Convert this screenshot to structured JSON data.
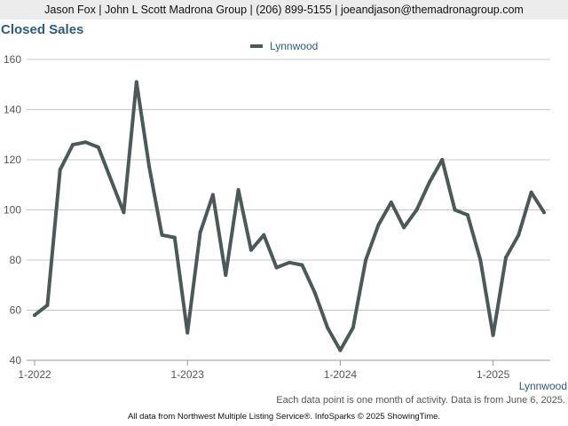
{
  "header": {
    "contact_line": "Jason Fox | John L Scott Madrona Group | (206) 899-5155 | joeandjason@themadronagroup.com"
  },
  "chart_data": {
    "type": "line",
    "title": "Closed Sales",
    "xlabel": "",
    "ylabel": "",
    "x": [
      "2022-01",
      "2022-02",
      "2022-03",
      "2022-04",
      "2022-05",
      "2022-06",
      "2022-07",
      "2022-08",
      "2022-09",
      "2022-10",
      "2022-11",
      "2022-12",
      "2023-01",
      "2023-02",
      "2023-03",
      "2023-04",
      "2023-05",
      "2023-06",
      "2023-07",
      "2023-08",
      "2023-09",
      "2023-10",
      "2023-11",
      "2023-12",
      "2024-01",
      "2024-02",
      "2024-03",
      "2024-04",
      "2024-05",
      "2024-06",
      "2024-07",
      "2024-08",
      "2024-09",
      "2024-10",
      "2024-11",
      "2024-12",
      "2025-01",
      "2025-02",
      "2025-03",
      "2025-04",
      "2025-05"
    ],
    "series": [
      {
        "name": "Lynnwood",
        "color": "#4d5959",
        "values": [
          58,
          62,
          116,
          126,
          127,
          125,
          112,
          99,
          151,
          117,
          90,
          89,
          51,
          91,
          106,
          74,
          108,
          84,
          90,
          77,
          79,
          78,
          67,
          53,
          44,
          53,
          80,
          94,
          103,
          93,
          100,
          111,
          120,
          100,
          98,
          80,
          50,
          81,
          90,
          107,
          99
        ]
      }
    ],
    "ylim": [
      40,
      160
    ],
    "y_ticks": [
      40,
      60,
      80,
      100,
      120,
      140,
      160
    ],
    "x_ticks": [
      {
        "label": "1-2022",
        "index": 0
      },
      {
        "label": "1-2023",
        "index": 12
      },
      {
        "label": "1-2024",
        "index": 24
      },
      {
        "label": "1-2025",
        "index": 36
      }
    ],
    "grid": "horizontal",
    "legend_position": "top-center",
    "legend": [
      "Lynnwood"
    ]
  },
  "series_label": "Lynnwood",
  "footnote": "Each data point is one month of activity. Data is from June 6, 2025.",
  "credit": "All data from Northwest Multiple Listing Service®. InfoSparks © 2025 ShowingTime."
}
